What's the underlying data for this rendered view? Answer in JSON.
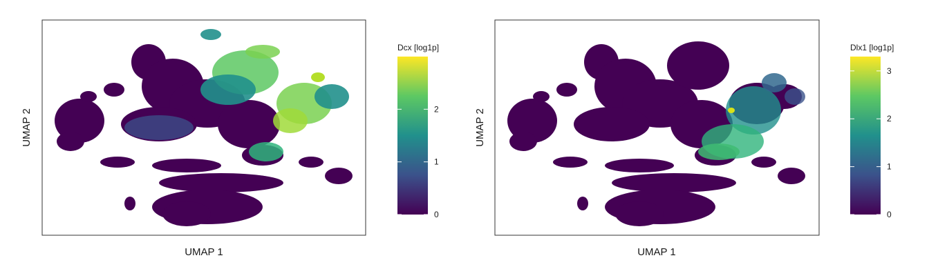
{
  "chart_data": [
    {
      "type": "heatmap",
      "subtype": "umap-hexbin",
      "xlabel": "UMAP 1",
      "ylabel": "UMAP 2",
      "colormap": "viridis",
      "colors": [
        "#440154",
        "#3b528b",
        "#21908c",
        "#5dc863",
        "#fde725"
      ],
      "legend": {
        "title": "Dcx [log1p]",
        "range": [
          0,
          3.0
        ],
        "ticks": [
          0,
          1,
          2
        ],
        "tick_labels": [
          "0",
          "1",
          "2"
        ],
        "placement": "right"
      },
      "grid": false,
      "high_expression_regions": [
        {
          "region": "upper-center lobe",
          "value": 2.2
        },
        {
          "region": "right-center lobe",
          "value": 2.6
        },
        {
          "region": "far-right tip",
          "value": 3.0
        },
        {
          "region": "center-left band",
          "value": 1.0
        },
        {
          "region": "lower-center bridge",
          "value": 1.8
        },
        {
          "region": "top small cluster",
          "value": 1.5
        }
      ]
    },
    {
      "type": "heatmap",
      "subtype": "umap-hexbin",
      "xlabel": "UMAP 1",
      "ylabel": "UMAP 2",
      "colormap": "viridis",
      "colors": [
        "#440154",
        "#3b528b",
        "#21908c",
        "#5dc863",
        "#fde725"
      ],
      "legend": {
        "title": "Dlx1 [log1p]",
        "range": [
          0,
          3.3
        ],
        "ticks": [
          0,
          1,
          2,
          3
        ],
        "tick_labels": [
          "0",
          "1",
          "2",
          "3"
        ],
        "placement": "right"
      },
      "grid": false,
      "high_expression_regions": [
        {
          "region": "right-center lobe",
          "value": 2.0
        },
        {
          "region": "lower-center bridge",
          "value": 2.2
        },
        {
          "region": "center hotspot",
          "value": 3.0
        },
        {
          "region": "far-right tip",
          "value": 1.0
        }
      ]
    }
  ]
}
